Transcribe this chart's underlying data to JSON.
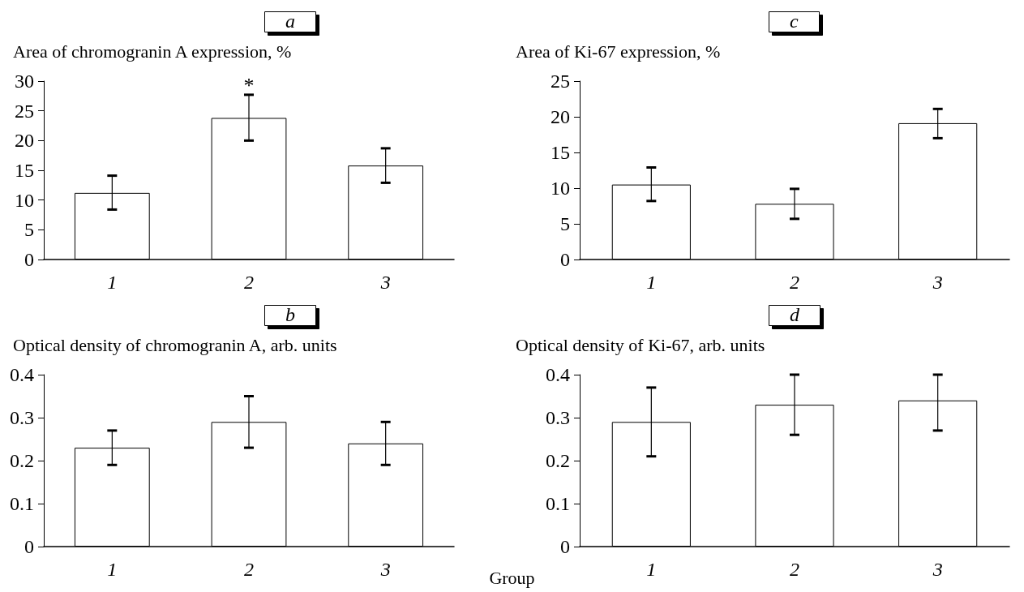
{
  "chart_data": [
    {
      "type": "bar",
      "title": "a",
      "ylabel": "Area of chromogranin A expression, %",
      "categories": [
        "1",
        "2",
        "3"
      ],
      "values": [
        11.2,
        23.8,
        15.8
      ],
      "errors": [
        [
          8.4,
          14.1
        ],
        [
          20,
          27.7
        ],
        [
          12.9,
          18.7
        ]
      ],
      "color": "#ffffff",
      "ylim": [
        0,
        30
      ],
      "yticks": [
        0,
        5,
        10,
        15,
        20,
        25,
        30
      ],
      "annotations": [
        {
          "text": "*",
          "x": "2",
          "y": 27.7
        }
      ]
    },
    {
      "type": "bar",
      "title": "c",
      "ylabel": "Area of Ki-67 expression, %",
      "categories": [
        "1",
        "2",
        "3"
      ],
      "values": [
        10.5,
        7.8,
        19.1
      ],
      "errors": [
        [
          8.2,
          12.9
        ],
        [
          5.7,
          9.9
        ],
        [
          17,
          21.1
        ]
      ],
      "color": "#ffffff",
      "ylim": [
        0,
        25
      ],
      "yticks": [
        0,
        5,
        10,
        15,
        20,
        25
      ]
    },
    {
      "type": "bar",
      "title": "b",
      "ylabel": "Optical density of chromogranin A, arb. units",
      "categories": [
        "1",
        "2",
        "3"
      ],
      "values": [
        0.23,
        0.29,
        0.24
      ],
      "errors": [
        [
          0.19,
          0.27
        ],
        [
          0.23,
          0.35
        ],
        [
          0.19,
          0.29
        ]
      ],
      "color": "#ffffff",
      "ylim": [
        0,
        0.4
      ],
      "yticks": [
        0,
        0.1,
        0.2,
        0.3,
        0.4
      ]
    },
    {
      "type": "bar",
      "title": "d",
      "ylabel": "Optical density of Ki-67, arb. units",
      "xlabel": "Group",
      "categories": [
        "1",
        "2",
        "3"
      ],
      "values": [
        0.29,
        0.33,
        0.34
      ],
      "errors": [
        [
          0.21,
          0.37
        ],
        [
          0.26,
          0.4
        ],
        [
          0.27,
          0.4
        ]
      ],
      "color": "#ffffff",
      "ylim": [
        0,
        0.4
      ],
      "yticks": [
        0,
        0.1,
        0.2,
        0.3,
        0.4
      ]
    }
  ]
}
